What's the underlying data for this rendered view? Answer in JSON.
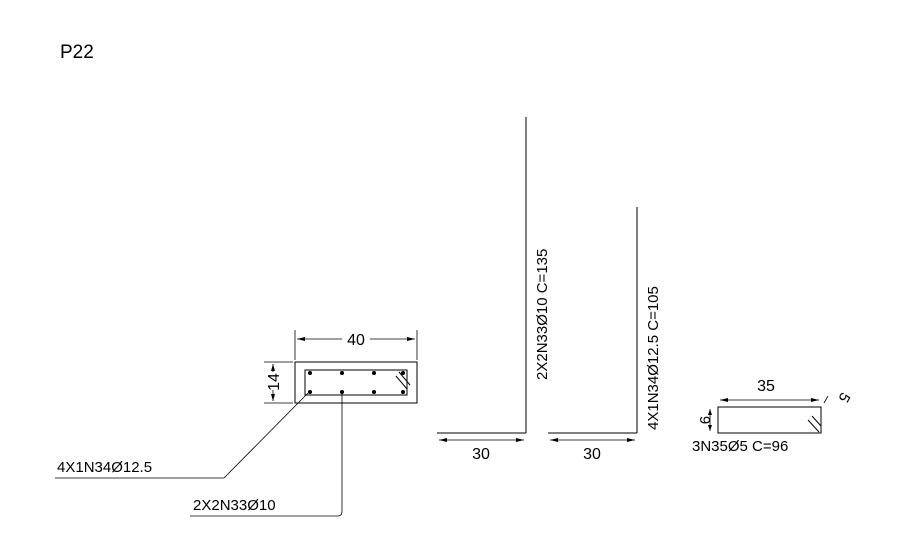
{
  "title": "P22",
  "section": {
    "width_label": "40",
    "height_label": "14",
    "callout_top_bars": "4X1N34Ø12.5",
    "callout_side_bars": "2X2N33Ø10"
  },
  "bar_n33": {
    "label": "2X2N33Ø10  C=135",
    "hook_label": "30"
  },
  "bar_n34": {
    "label": "4X1N34Ø12.5  C=105",
    "hook_label": "30"
  },
  "stirrup_n35": {
    "width_label": "35",
    "height_label": "9",
    "hook_label": "5",
    "label": "3N35Ø5  C=96"
  }
}
